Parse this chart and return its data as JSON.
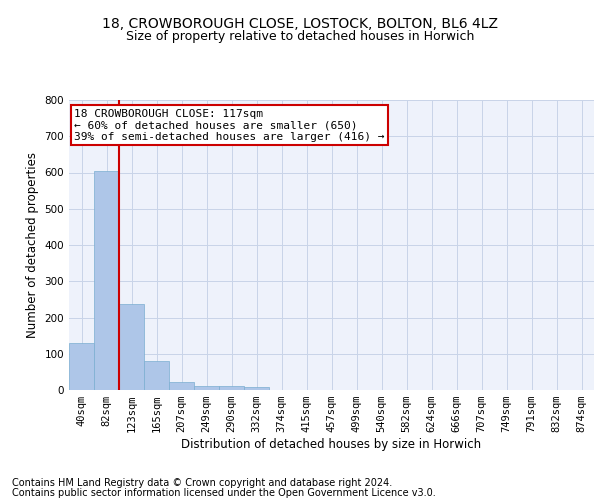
{
  "title_line1": "18, CROWBOROUGH CLOSE, LOSTOCK, BOLTON, BL6 4LZ",
  "title_line2": "Size of property relative to detached houses in Horwich",
  "xlabel": "Distribution of detached houses by size in Horwich",
  "ylabel": "Number of detached properties",
  "footnote_line1": "Contains HM Land Registry data © Crown copyright and database right 2024.",
  "footnote_line2": "Contains public sector information licensed under the Open Government Licence v3.0.",
  "bar_labels": [
    "40sqm",
    "82sqm",
    "123sqm",
    "165sqm",
    "207sqm",
    "249sqm",
    "290sqm",
    "332sqm",
    "374sqm",
    "415sqm",
    "457sqm",
    "499sqm",
    "540sqm",
    "582sqm",
    "624sqm",
    "666sqm",
    "707sqm",
    "749sqm",
    "791sqm",
    "832sqm",
    "874sqm"
  ],
  "bar_heights": [
    130,
    605,
    237,
    80,
    23,
    10,
    10,
    7,
    0,
    0,
    0,
    0,
    0,
    0,
    0,
    0,
    0,
    0,
    0,
    0,
    0
  ],
  "bar_color": "#aec6e8",
  "bar_edge_color": "#7aaed0",
  "grid_color": "#c8d4e8",
  "background_color": "#eef2fb",
  "vline_color": "#cc0000",
  "vline_x_index": 1.5,
  "annotation_text": "18 CROWBOROUGH CLOSE: 117sqm\n← 60% of detached houses are smaller (650)\n39% of semi-detached houses are larger (416) →",
  "annotation_box_color": "#cc0000",
  "ylim": [
    0,
    800
  ],
  "yticks": [
    0,
    100,
    200,
    300,
    400,
    500,
    600,
    700,
    800
  ],
  "title_fontsize": 10,
  "subtitle_fontsize": 9,
  "axis_label_fontsize": 8.5,
  "tick_fontsize": 7.5,
  "annotation_fontsize": 8,
  "footnote_fontsize": 7
}
